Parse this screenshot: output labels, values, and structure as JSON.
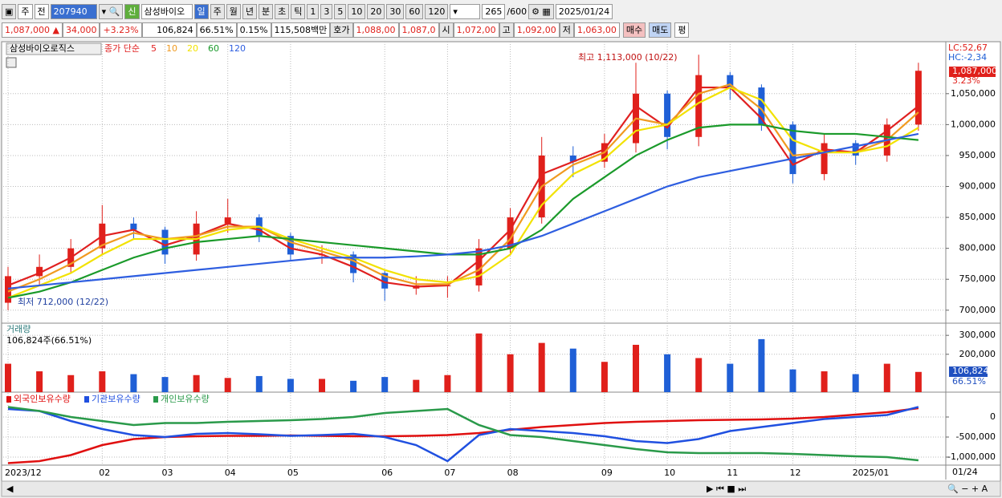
{
  "toolbar": {
    "items": [
      "주",
      "전",
      "207940",
      "신",
      "삼성바이오",
      "일",
      "주",
      "월",
      "년",
      "분",
      "초",
      "틱",
      "1",
      "3",
      "5",
      "10",
      "20",
      "30",
      "60",
      "120",
      "265",
      "/600",
      "2025/01/24"
    ]
  },
  "quote": {
    "items": [
      "1,087,000 ▲",
      "34,000",
      "+3.23%",
      "106,824",
      "66.51%",
      "0.15%",
      "115,508백만",
      "호가",
      "1,088,00",
      "1,087,0",
      "시",
      "1,072,00",
      "고",
      "1,092,00",
      "저",
      "1,063,00",
      "매수",
      "매도",
      "평"
    ]
  },
  "chart_data": [
    {
      "type": "candlestick",
      "stock_name": "삼성바이오로직스",
      "legend_title": "종가 단순",
      "up_color": "#e0201b",
      "down_color": "#1f5fd6",
      "open": [
        712000,
        755000,
        770000,
        800000,
        840000,
        830000,
        790000,
        840000,
        850000,
        820000,
        790000,
        790000,
        760000,
        735000,
        740000,
        740000,
        800000,
        850000,
        950000,
        940000,
        970000,
        1050000,
        980000,
        1080000,
        1060000,
        1000000,
        920000,
        970000,
        950000,
        1000000
      ],
      "high": [
        770000,
        790000,
        815000,
        870000,
        850000,
        835000,
        860000,
        880000,
        855000,
        825000,
        805000,
        795000,
        765000,
        755000,
        755000,
        815000,
        865000,
        980000,
        965000,
        985000,
        1100000,
        1055000,
        1113000,
        1085000,
        1065000,
        1005000,
        985000,
        975000,
        1010000,
        1100000
      ],
      "low": [
        700000,
        740000,
        760000,
        790000,
        815000,
        775000,
        780000,
        825000,
        810000,
        780000,
        775000,
        745000,
        715000,
        725000,
        720000,
        730000,
        790000,
        840000,
        915000,
        930000,
        955000,
        960000,
        965000,
        1040000,
        990000,
        905000,
        910000,
        935000,
        940000,
        990000
      ],
      "close": [
        755000,
        770000,
        800000,
        840000,
        830000,
        790000,
        840000,
        850000,
        820000,
        790000,
        790000,
        760000,
        735000,
        740000,
        740000,
        800000,
        850000,
        950000,
        940000,
        970000,
        1050000,
        980000,
        1080000,
        1060000,
        1000000,
        920000,
        970000,
        950000,
        1000000,
        1087000
      ],
      "series": [
        {
          "name": "5",
          "color": "#e02020",
          "values": [
            740000,
            760000,
            785000,
            820000,
            830000,
            805000,
            820000,
            840000,
            830000,
            800000,
            790000,
            770000,
            745000,
            738000,
            740000,
            780000,
            830000,
            920000,
            940000,
            960000,
            1030000,
            995000,
            1060000,
            1060000,
            1010000,
            935000,
            960000,
            955000,
            990000,
            1030000
          ]
        },
        {
          "name": "10",
          "color": "#f09a20",
          "values": [
            730000,
            750000,
            775000,
            805000,
            825000,
            815000,
            820000,
            835000,
            835000,
            810000,
            795000,
            780000,
            755000,
            742000,
            742000,
            765000,
            815000,
            900000,
            935000,
            955000,
            1010000,
            1000000,
            1050000,
            1065000,
            1025000,
            950000,
            955000,
            955000,
            975000,
            1020000
          ]
        },
        {
          "name": "20",
          "color": "#f2e200",
          "values": [
            720000,
            740000,
            760000,
            790000,
            815000,
            815000,
            815000,
            830000,
            835000,
            815000,
            800000,
            785000,
            765000,
            750000,
            745000,
            755000,
            790000,
            870000,
            920000,
            945000,
            990000,
            1000000,
            1035000,
            1060000,
            1040000,
            975000,
            955000,
            955000,
            965000,
            995000
          ]
        },
        {
          "name": "60",
          "color": "#1a9a2a",
          "values": [
            720000,
            730000,
            745000,
            765000,
            785000,
            800000,
            810000,
            815000,
            820000,
            815000,
            810000,
            805000,
            800000,
            795000,
            790000,
            790000,
            800000,
            830000,
            880000,
            915000,
            950000,
            975000,
            995000,
            1000000,
            1000000,
            990000,
            985000,
            985000,
            980000,
            975000
          ]
        },
        {
          "name": "120",
          "color": "#2e5ee0",
          "values": [
            735000,
            740000,
            745000,
            750000,
            755000,
            760000,
            765000,
            770000,
            775000,
            780000,
            785000,
            785000,
            785000,
            787000,
            790000,
            795000,
            805000,
            820000,
            840000,
            860000,
            880000,
            900000,
            915000,
            925000,
            935000,
            945000,
            955000,
            965000,
            975000,
            985000
          ]
        }
      ],
      "ylim": [
        679000,
        1134000
      ],
      "yticks": [
        {
          "value": 700000,
          "label": "700,000"
        },
        {
          "value": 750000,
          "label": "750,000"
        },
        {
          "value": 800000,
          "label": "800,000"
        },
        {
          "value": 850000,
          "label": "850,000"
        },
        {
          "value": 900000,
          "label": "900,000"
        },
        {
          "value": 950000,
          "label": "950,000"
        },
        {
          "value": 1000000,
          "label": "1,000,000"
        },
        {
          "value": 1050000,
          "label": "1,050,000"
        }
      ],
      "grid": true,
      "high_annotation": "최고 1,113,000 (10/22)",
      "low_annotation": "최저 712,000 (12/22)",
      "lc_label": "LC:52,67",
      "hc_label": "HC:-2,34",
      "last_price_label": "1,087,000",
      "change_label": "3.23%"
    },
    {
      "type": "bar",
      "title": "거래량",
      "subtitle": "106,824주(66.51%)",
      "values": [
        150000,
        110000,
        90000,
        110000,
        95000,
        80000,
        90000,
        75000,
        85000,
        70000,
        70000,
        60000,
        80000,
        65000,
        90000,
        310000,
        200000,
        260000,
        230000,
        160000,
        250000,
        200000,
        180000,
        150000,
        280000,
        120000,
        110000,
        95000,
        150000,
        106824
      ],
      "ylim": [
        0,
        360000
      ],
      "yticks": [
        {
          "value": 200000,
          "label": "200,000"
        },
        {
          "value": 300000,
          "label": "300,000"
        }
      ],
      "last_volume_label": "106,824",
      "ratio_label": "66.51%"
    },
    {
      "type": "line",
      "categories": [
        "2023/12",
        null,
        null,
        "02",
        null,
        "03",
        null,
        "04",
        null,
        "05",
        null,
        null,
        "06",
        null,
        "07",
        null,
        "08",
        null,
        null,
        "09",
        null,
        "10",
        null,
        "11",
        null,
        "12",
        null,
        "2025/01",
        null,
        null
      ],
      "end_label": "01/24",
      "series": [
        {
          "name": "외국인보유수량",
          "color": "#e01010",
          "values": [
            -1150000,
            -1100000,
            -950000,
            -700000,
            -550000,
            -500000,
            -480000,
            -470000,
            -470000,
            -460000,
            -470000,
            -480000,
            -480000,
            -470000,
            -450000,
            -400000,
            -320000,
            -250000,
            -200000,
            -150000,
            -120000,
            -100000,
            -80000,
            -70000,
            -60000,
            -40000,
            0,
            60000,
            120000,
            220000
          ]
        },
        {
          "name": "기관보유수량",
          "color": "#2050e0",
          "values": [
            200000,
            150000,
            -100000,
            -300000,
            -450000,
            -500000,
            -420000,
            -400000,
            -430000,
            -470000,
            -450000,
            -420000,
            -500000,
            -700000,
            -1100000,
            -450000,
            -300000,
            -350000,
            -400000,
            -480000,
            -600000,
            -650000,
            -550000,
            -350000,
            -250000,
            -150000,
            -50000,
            0,
            50000,
            250000
          ]
        },
        {
          "name": "개인보유수량",
          "color": "#2a9a4a",
          "values": [
            250000,
            150000,
            0,
            -100000,
            -200000,
            -150000,
            -150000,
            -120000,
            -100000,
            -80000,
            -50000,
            0,
            100000,
            150000,
            200000,
            -200000,
            -450000,
            -500000,
            -600000,
            -700000,
            -800000,
            -880000,
            -900000,
            -900000,
            -900000,
            -920000,
            -950000,
            -980000,
            -1000000,
            -1080000
          ]
        }
      ],
      "ylim": [
        -1200000,
        600000
      ],
      "yticks": [
        {
          "value": -1000000,
          "label": "-1,000,000"
        },
        {
          "value": -500000,
          "label": "-500,000"
        },
        0
      ]
    }
  ]
}
